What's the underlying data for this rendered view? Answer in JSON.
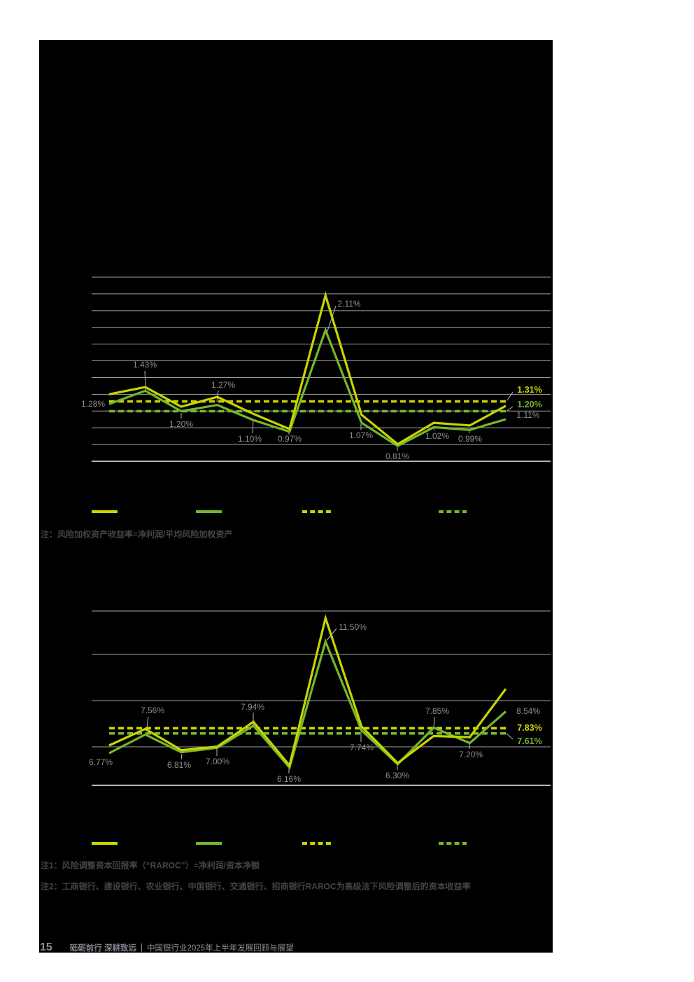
{
  "notes": {
    "chart1_note": "注：风险加权资产收益率=净利润/平均风险加权资产",
    "chart2_note1": "注1：风险调整资本回报率（“RAROC”）=净利润/资本净额",
    "chart2_note2": "注2：工商银行、建设银行、农业银行、中国银行、交通银行、招商银行RAROC为高级法下风险调整后的资本收益率"
  },
  "footer": {
    "page_number": "15",
    "tagline": "砥砺前行 深耕致远",
    "separator": "|",
    "report_title": "中国银行业2025年上半年发展回顾与展望"
  },
  "colors": {
    "lime": "#c9d400",
    "green": "#74b72b",
    "label_gray": "#8e8e8e",
    "gridline": "#a2a2a2",
    "connector": "#b8b8b8",
    "panel_background": "#000000",
    "page_background": "#ffffff"
  },
  "chart_data": [
    {
      "id": "rorwa",
      "type": "line",
      "points_per_series": 12,
      "series": [
        {
          "name": "solid-lime-line",
          "color": "#c9d400",
          "style": "solid",
          "values_estimated": true,
          "values": [
            1.39,
            1.47,
            1.25,
            1.36,
            1.17,
            1.0,
            2.5,
            1.16,
            0.83,
            1.07,
            1.04,
            1.26
          ]
        },
        {
          "name": "solid-green-line",
          "color": "#74b72b",
          "style": "solid",
          "values": [
            1.28,
            1.43,
            1.2,
            1.27,
            1.1,
            0.97,
            2.11,
            1.07,
            0.81,
            1.02,
            0.99,
            1.11
          ],
          "point_labels": [
            "1.28%",
            "1.43%",
            "1.20%",
            "1.27%",
            "1.10%",
            "0.97%",
            "2.11%",
            "1.07%",
            "0.81%",
            "1.02%",
            "0.99%",
            "1.11%"
          ]
        }
      ],
      "reference_lines": [
        {
          "name": "dashed-lime-average",
          "value": 1.31,
          "label": "1.31%",
          "color": "#c9d400",
          "style": "dashed"
        },
        {
          "name": "dashed-green-average",
          "value": 1.2,
          "label": "1.20%",
          "color": "#74b72b",
          "style": "dashed"
        }
      ],
      "legend": [
        {
          "swatch": "solid",
          "color": "#c9d400"
        },
        {
          "swatch": "solid",
          "color": "#74b72b"
        },
        {
          "swatch": "dashed",
          "color": "#c9d400"
        },
        {
          "swatch": "dashed",
          "color": "#74b72b"
        }
      ],
      "ylim": [
        0.64,
        2.7
      ],
      "gridline_count": 12,
      "grid_on": true
    },
    {
      "id": "raroc",
      "type": "line",
      "points_per_series": 12,
      "series": [
        {
          "name": "solid-lime-line",
          "color": "#c9d400",
          "style": "solid",
          "values_estimated": true,
          "values": [
            7.1,
            7.8,
            6.9,
            7.05,
            8.1,
            6.25,
            12.5,
            7.9,
            6.35,
            7.5,
            7.45,
            9.5
          ]
        },
        {
          "name": "solid-green-line",
          "color": "#74b72b",
          "style": "solid",
          "values": [
            6.77,
            7.56,
            6.81,
            7.0,
            7.94,
            6.16,
            11.5,
            7.74,
            6.3,
            7.85,
            7.2,
            8.54
          ],
          "point_labels": [
            "6.77%",
            "7.56%",
            "6.81%",
            "7.00%",
            "7.94%",
            "6.16%",
            "11.50%",
            "7.74%",
            "6.30%",
            "7.85%",
            "7.20%",
            "8.54%"
          ]
        }
      ],
      "reference_lines": [
        {
          "name": "dashed-lime-average",
          "value": 7.83,
          "label": "7.83%",
          "color": "#c9d400",
          "style": "dashed"
        },
        {
          "name": "dashed-green-average",
          "value": 7.61,
          "label": "7.61%",
          "color": "#74b72b",
          "style": "dashed"
        }
      ],
      "legend": [
        {
          "swatch": "solid",
          "color": "#c9d400"
        },
        {
          "swatch": "solid",
          "color": "#74b72b"
        },
        {
          "swatch": "dashed",
          "color": "#c9d400"
        },
        {
          "swatch": "dashed",
          "color": "#74b72b"
        }
      ],
      "ylim": [
        5.4,
        13.4
      ],
      "gridline_count": 5,
      "grid_on": true
    }
  ]
}
